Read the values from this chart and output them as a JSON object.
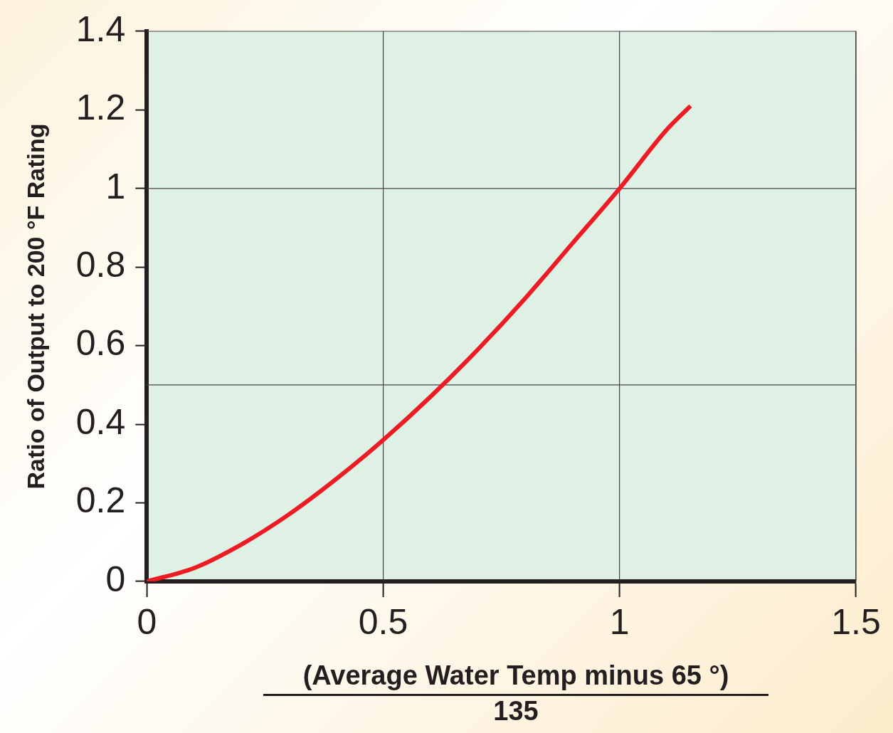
{
  "chart_data": {
    "type": "line",
    "xlabel": "(Average Water Temp minus 65 °)\n135",
    "ylabel": "Ratio of Output to 200 °F Rating",
    "x": [
      0,
      0.1,
      0.2,
      0.3,
      0.4,
      0.5,
      0.6,
      0.7,
      0.8,
      0.9,
      1,
      1.1,
      1.15
    ],
    "series": [
      {
        "color": "#ed1c24",
        "values": [
          0,
          0.034,
          0.094,
          0.17,
          0.26,
          0.36,
          0.47,
          0.59,
          0.72,
          0.86,
          1,
          1.15,
          1.21
        ]
      }
    ],
    "xlim": [
      0,
      1.5
    ],
    "xticks": [
      0,
      0.5,
      1,
      1.5
    ],
    "ylim": [
      0,
      1.4
    ],
    "yticks": [
      0,
      0.2,
      0.4,
      0.6,
      0.8,
      1,
      1.2,
      1.4
    ],
    "grid": "x",
    "legend": false,
    "marker": "none",
    "line_style": "solid",
    "ref_lines": [
      {
        "axis": "y",
        "value": 0.5,
        "color": "#444444"
      },
      {
        "axis": "y",
        "value": 1,
        "color": "#444444"
      }
    ]
  }
}
